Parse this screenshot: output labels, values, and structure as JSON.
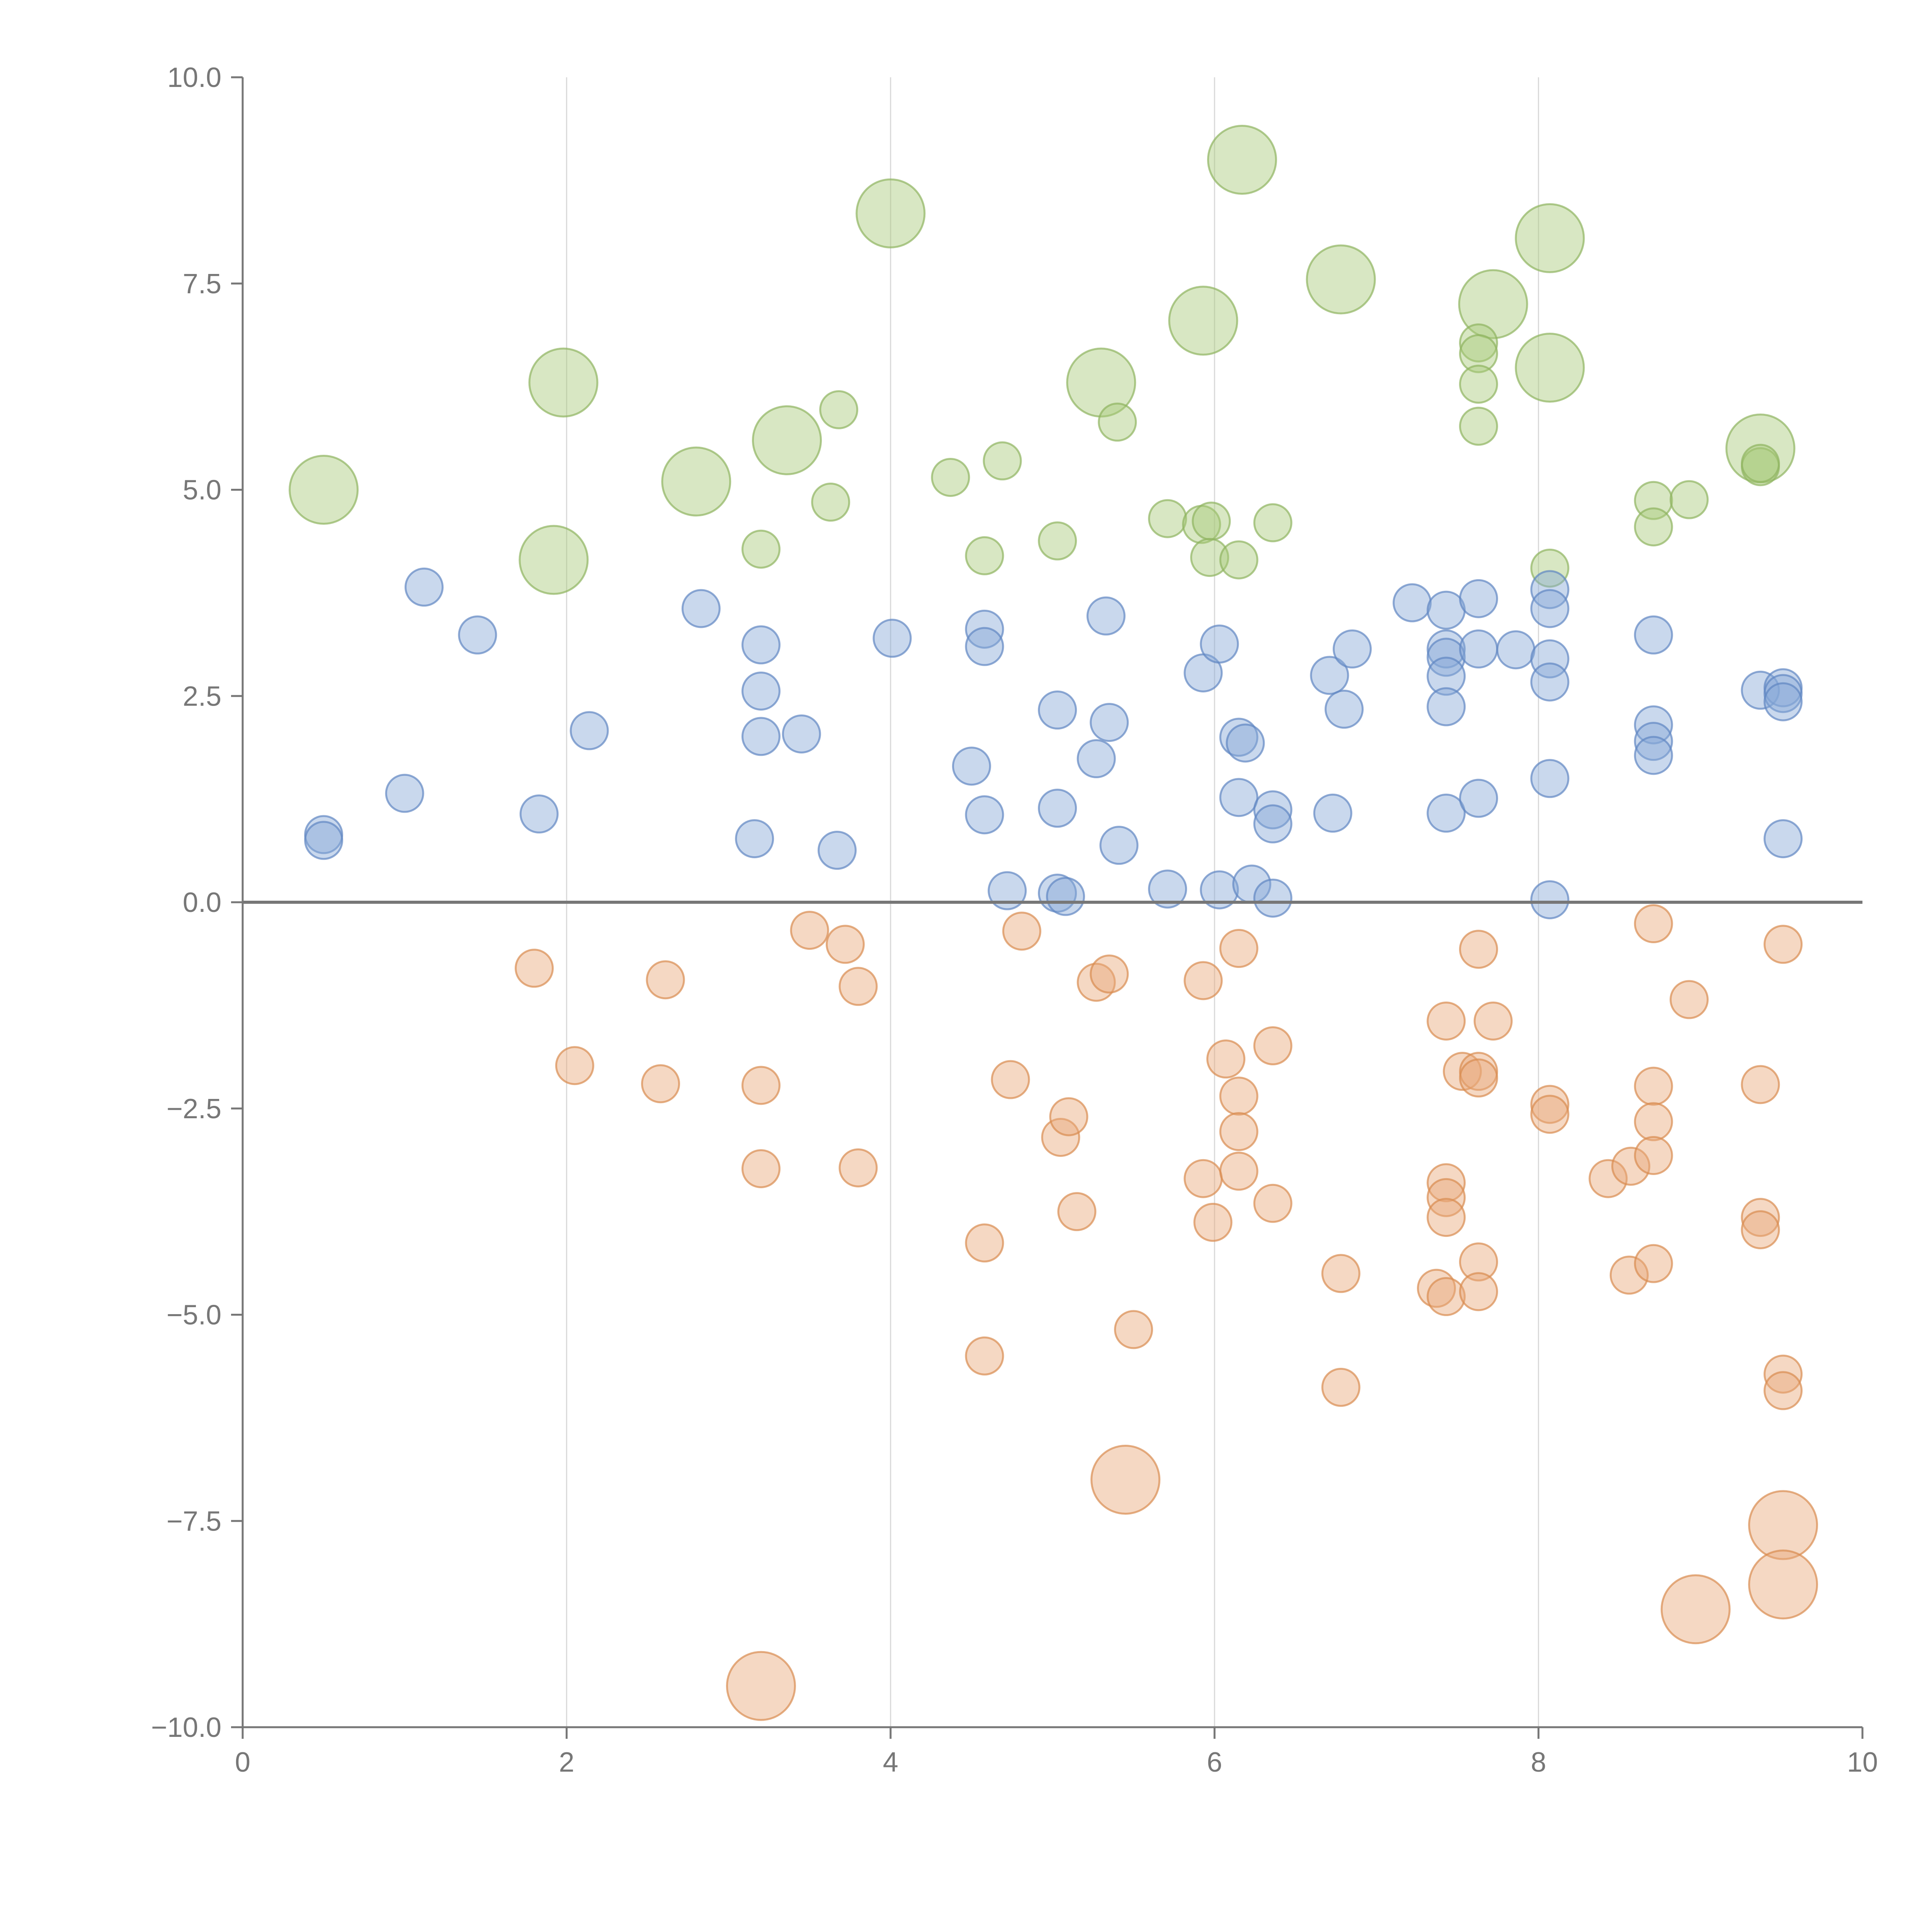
{
  "chart_data": {
    "type": "scatter",
    "title": "",
    "xlabel": "",
    "ylabel": "",
    "xlim": [
      0,
      10
    ],
    "ylim": [
      -10,
      10
    ],
    "x_ticks": [
      0,
      2,
      4,
      6,
      8,
      10
    ],
    "y_ticks": [
      -10,
      -7.5,
      -5,
      -2.5,
      0,
      2.5,
      5,
      7.5,
      10
    ],
    "x_tick_labels": [
      "0",
      "2",
      "4",
      "6",
      "8",
      "10"
    ],
    "y_tick_labels": [
      "−10.0",
      "−7.5",
      "−5.0",
      "−2.5",
      "0.0",
      "2.5",
      "5.0",
      "7.5",
      "10.0"
    ],
    "grid": {
      "x": true,
      "y": false
    },
    "zero_line": true,
    "point_opacity": 0.45,
    "series": [
      {
        "color": "#a9c97a",
        "stroke": "#8fb35f",
        "points": [
          [
            0.5,
            5.0,
            2
          ],
          [
            1.98,
            6.3,
            2
          ],
          [
            1.92,
            4.15,
            2
          ],
          [
            2.8,
            5.1,
            2
          ],
          [
            3.36,
            5.6,
            2
          ],
          [
            4.0,
            8.35,
            2
          ],
          [
            5.3,
            6.3,
            2
          ],
          [
            5.93,
            7.05,
            2
          ],
          [
            6.17,
            9.0,
            2
          ],
          [
            6.78,
            7.55,
            2
          ],
          [
            7.72,
            7.25,
            2
          ],
          [
            8.07,
            8.05,
            2
          ],
          [
            8.07,
            6.48,
            2
          ],
          [
            9.37,
            5.5,
            2
          ],
          [
            3.68,
            5.97,
            1
          ],
          [
            3.2,
            4.28,
            1
          ],
          [
            3.63,
            4.85,
            1
          ],
          [
            4.37,
            5.15,
            1
          ],
          [
            4.69,
            5.35,
            1
          ],
          [
            4.58,
            4.2,
            1
          ],
          [
            5.03,
            4.38,
            1
          ],
          [
            5.4,
            5.82,
            1
          ],
          [
            5.71,
            4.65,
            1
          ],
          [
            5.92,
            4.58,
            1
          ],
          [
            5.98,
            4.62,
            1
          ],
          [
            5.97,
            4.18,
            1
          ],
          [
            6.15,
            4.15,
            1
          ],
          [
            6.36,
            4.6,
            1
          ],
          [
            7.63,
            6.78,
            1
          ],
          [
            7.63,
            6.65,
            1
          ],
          [
            7.63,
            6.28,
            1
          ],
          [
            7.63,
            5.77,
            1
          ],
          [
            8.07,
            4.05,
            1
          ],
          [
            8.71,
            4.87,
            1
          ],
          [
            8.71,
            4.55,
            1
          ],
          [
            8.93,
            4.88,
            1
          ],
          [
            9.37,
            5.28,
            1
          ],
          [
            9.37,
            5.32,
            1
          ]
        ]
      },
      {
        "color": "#87a8d6",
        "stroke": "#5f86c2",
        "points": [
          [
            0.5,
            0.82,
            1
          ],
          [
            0.5,
            0.75,
            1
          ],
          [
            1.0,
            1.32,
            1
          ],
          [
            1.12,
            3.82,
            1
          ],
          [
            1.45,
            3.24,
            1
          ],
          [
            1.83,
            1.07,
            1
          ],
          [
            2.14,
            2.08,
            1
          ],
          [
            2.83,
            3.56,
            1
          ],
          [
            3.2,
            3.12,
            1
          ],
          [
            3.2,
            2.56,
            1
          ],
          [
            3.2,
            2.01,
            1
          ],
          [
            3.16,
            0.77,
            1
          ],
          [
            3.45,
            2.04,
            1
          ],
          [
            3.67,
            0.63,
            1
          ],
          [
            4.01,
            3.2,
            1
          ],
          [
            4.5,
            1.65,
            1
          ],
          [
            4.58,
            3.31,
            1
          ],
          [
            4.58,
            3.1,
            1
          ],
          [
            4.58,
            1.06,
            1
          ],
          [
            4.72,
            0.14,
            1
          ],
          [
            5.03,
            2.33,
            1
          ],
          [
            5.03,
            1.14,
            1
          ],
          [
            5.03,
            0.11,
            1
          ],
          [
            5.08,
            0.07,
            1
          ],
          [
            5.27,
            1.74,
            1
          ],
          [
            5.33,
            3.47,
            1
          ],
          [
            5.35,
            2.18,
            1
          ],
          [
            5.41,
            0.69,
            1
          ],
          [
            5.71,
            0.16,
            1
          ],
          [
            5.93,
            2.78,
            1
          ],
          [
            6.03,
            3.13,
            1
          ],
          [
            6.03,
            0.15,
            1
          ],
          [
            6.15,
            2.0,
            1
          ],
          [
            6.15,
            1.27,
            1
          ],
          [
            6.19,
            1.93,
            1
          ],
          [
            6.23,
            0.22,
            1
          ],
          [
            6.36,
            1.12,
            1
          ],
          [
            6.36,
            0.95,
            1
          ],
          [
            6.36,
            0.05,
            1
          ],
          [
            6.71,
            2.75,
            1
          ],
          [
            6.73,
            1.08,
            1
          ],
          [
            6.8,
            2.34,
            1
          ],
          [
            6.85,
            3.07,
            1
          ],
          [
            7.22,
            3.63,
            1
          ],
          [
            7.43,
            3.54,
            1
          ],
          [
            7.43,
            3.07,
            1
          ],
          [
            7.43,
            2.97,
            1
          ],
          [
            7.43,
            2.74,
            1
          ],
          [
            7.43,
            2.37,
            1
          ],
          [
            7.43,
            1.08,
            1
          ],
          [
            7.63,
            3.68,
            1
          ],
          [
            7.63,
            3.07,
            1
          ],
          [
            7.63,
            1.26,
            1
          ],
          [
            7.86,
            3.06,
            1
          ],
          [
            8.07,
            3.79,
            1
          ],
          [
            8.07,
            3.56,
            1
          ],
          [
            8.07,
            2.95,
            1
          ],
          [
            8.07,
            2.67,
            1
          ],
          [
            8.07,
            1.5,
            1
          ],
          [
            8.07,
            0.03,
            1
          ],
          [
            8.71,
            3.24,
            1
          ],
          [
            8.71,
            2.15,
            1
          ],
          [
            8.71,
            1.95,
            1
          ],
          [
            8.71,
            1.78,
            1
          ],
          [
            9.37,
            2.57,
            1
          ],
          [
            9.51,
            2.6,
            1
          ],
          [
            9.51,
            2.53,
            1
          ],
          [
            9.51,
            2.43,
            1
          ],
          [
            9.51,
            0.77,
            1
          ]
        ]
      },
      {
        "color": "#e8a87a",
        "stroke": "#d98c50",
        "points": [
          [
            1.8,
            -0.8,
            1
          ],
          [
            2.05,
            -1.98,
            1
          ],
          [
            2.58,
            -2.2,
            1
          ],
          [
            2.61,
            -0.94,
            1
          ],
          [
            3.2,
            -2.22,
            1
          ],
          [
            3.2,
            -3.23,
            1
          ],
          [
            3.5,
            -0.34,
            1
          ],
          [
            3.72,
            -0.51,
            1
          ],
          [
            3.8,
            -1.02,
            1
          ],
          [
            3.8,
            -3.22,
            1
          ],
          [
            4.58,
            -4.13,
            1
          ],
          [
            4.58,
            -5.5,
            1
          ],
          [
            4.74,
            -2.15,
            1
          ],
          [
            4.81,
            -0.35,
            1
          ],
          [
            5.05,
            -2.85,
            1
          ],
          [
            5.1,
            -2.6,
            1
          ],
          [
            5.15,
            -3.75,
            1
          ],
          [
            5.27,
            -0.97,
            1
          ],
          [
            5.35,
            -0.87,
            1
          ],
          [
            5.5,
            -5.18,
            1
          ],
          [
            5.93,
            -0.95,
            1
          ],
          [
            5.93,
            -3.35,
            1
          ],
          [
            5.99,
            -3.88,
            1
          ],
          [
            6.07,
            -1.9,
            1
          ],
          [
            6.15,
            -0.56,
            1
          ],
          [
            6.15,
            -2.35,
            1
          ],
          [
            6.15,
            -2.78,
            1
          ],
          [
            6.15,
            -3.26,
            1
          ],
          [
            6.36,
            -1.74,
            1
          ],
          [
            6.36,
            -3.65,
            1
          ],
          [
            6.78,
            -4.5,
            1
          ],
          [
            6.78,
            -5.88,
            1
          ],
          [
            7.37,
            -4.68,
            1
          ],
          [
            7.43,
            -1.44,
            1
          ],
          [
            7.43,
            -3.4,
            1
          ],
          [
            7.43,
            -3.58,
            1
          ],
          [
            7.43,
            -3.82,
            1
          ],
          [
            7.43,
            -4.78,
            1
          ],
          [
            7.53,
            -2.05,
            1
          ],
          [
            7.63,
            -0.57,
            1
          ],
          [
            7.63,
            -2.05,
            1
          ],
          [
            7.63,
            -2.13,
            1
          ],
          [
            7.63,
            -4.36,
            1
          ],
          [
            7.63,
            -4.72,
            1
          ],
          [
            7.72,
            -1.44,
            1
          ],
          [
            8.07,
            -2.45,
            1
          ],
          [
            8.07,
            -2.57,
            1
          ],
          [
            8.43,
            -3.35,
            1
          ],
          [
            8.56,
            -4.52,
            1
          ],
          [
            8.57,
            -3.2,
            1
          ],
          [
            8.71,
            -0.26,
            1
          ],
          [
            8.71,
            -2.23,
            1
          ],
          [
            8.71,
            -2.66,
            1
          ],
          [
            8.71,
            -3.07,
            1
          ],
          [
            8.71,
            -4.38,
            1
          ],
          [
            8.93,
            -1.18,
            1
          ],
          [
            9.37,
            -2.21,
            1
          ],
          [
            9.37,
            -3.82,
            1
          ],
          [
            9.37,
            -3.97,
            1
          ],
          [
            9.51,
            -0.51,
            1
          ],
          [
            9.51,
            -5.72,
            1
          ],
          [
            9.51,
            -5.92,
            1
          ],
          [
            3.2,
            -9.5,
            2
          ],
          [
            5.45,
            -7.0,
            2
          ],
          [
            8.97,
            -8.57,
            2
          ],
          [
            9.51,
            -7.55,
            2
          ],
          [
            9.51,
            -8.27,
            2
          ]
        ]
      }
    ]
  }
}
